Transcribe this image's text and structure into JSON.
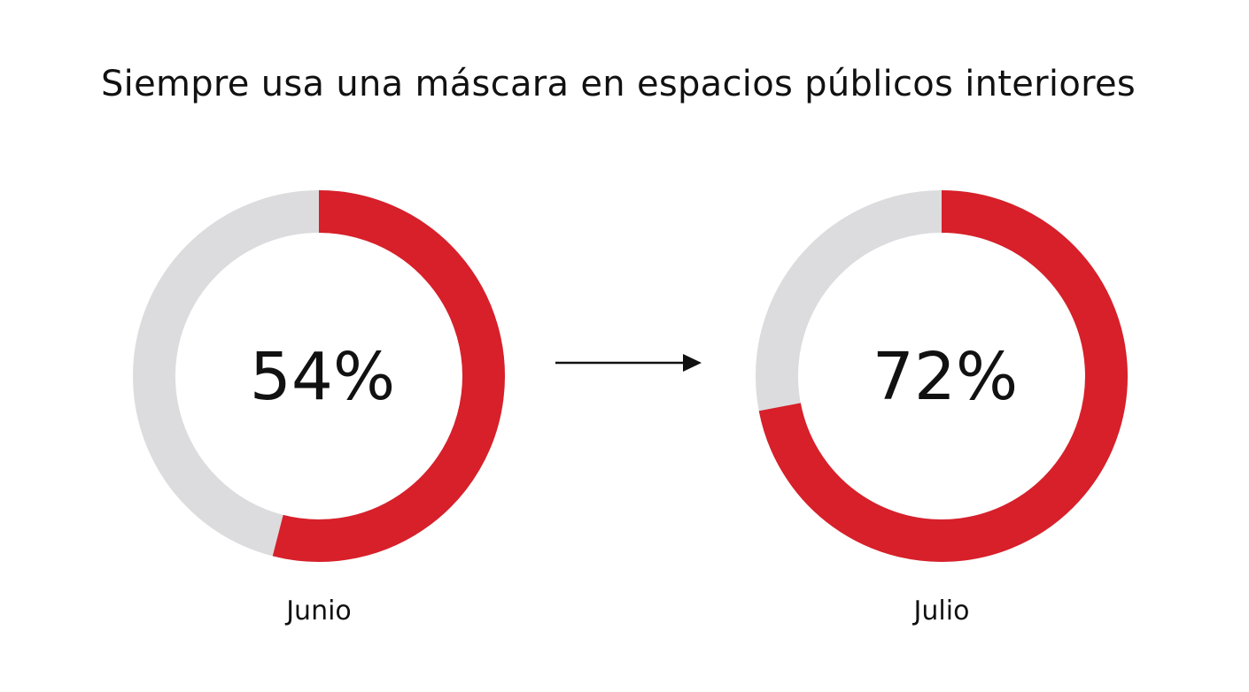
{
  "chart_data": {
    "type": "pie",
    "variant": "donut",
    "title": "Siempre usa una máscara en espacios públicos interiores",
    "series": [
      {
        "label": "Junio",
        "value": 54,
        "display": "54%"
      },
      {
        "label": "Julio",
        "value": 72,
        "display": "72%"
      }
    ],
    "max": 100,
    "colors": {
      "filled": "#d7202a",
      "remainder": "#dcdcde",
      "text": "#111111"
    },
    "arrow": {
      "from": "Junio",
      "to": "Julio"
    }
  }
}
